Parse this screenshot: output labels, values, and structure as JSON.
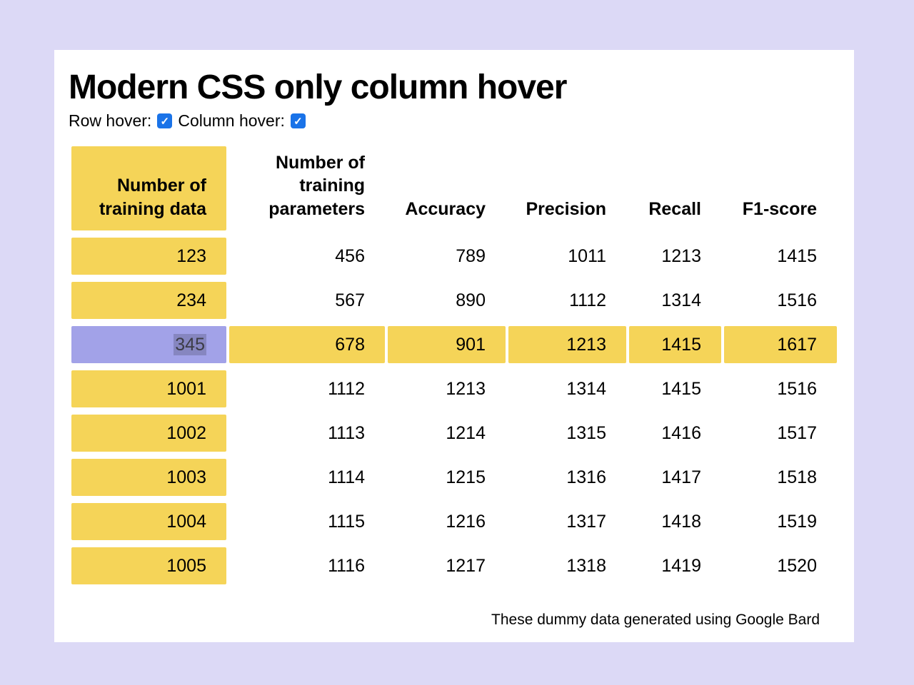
{
  "page": {
    "title": "Modern CSS only column hover",
    "footer": "These dummy data generated using Google Bard"
  },
  "controls": {
    "row_hover_label": "Row hover:",
    "column_hover_label": "Column hover:",
    "row_hover_checked": true,
    "column_hover_checked": true,
    "check_icon": "✓"
  },
  "table": {
    "headers": [
      "Number of training data",
      "Number of training parameters",
      "Accuracy",
      "Precision",
      "Recall",
      "F1-score"
    ],
    "rows": [
      [
        "123",
        "456",
        "789",
        "1011",
        "1213",
        "1415"
      ],
      [
        "234",
        "567",
        "890",
        "1112",
        "1314",
        "1516"
      ],
      [
        "345",
        "678",
        "901",
        "1213",
        "1415",
        "1617"
      ],
      [
        "1001",
        "1112",
        "1213",
        "1314",
        "1415",
        "1516"
      ],
      [
        "1002",
        "1113",
        "1214",
        "1315",
        "1416",
        "1517"
      ],
      [
        "1003",
        "1114",
        "1215",
        "1316",
        "1417",
        "1518"
      ],
      [
        "1004",
        "1115",
        "1216",
        "1317",
        "1418",
        "1519"
      ],
      [
        "1005",
        "1116",
        "1217",
        "1318",
        "1419",
        "1520"
      ]
    ],
    "highlighted_row_index": 2,
    "selected_cell_value": "345"
  },
  "colors": {
    "page_bg": "#dcd9f6",
    "card_bg": "#ffffff",
    "cell_yellow": "#f5d458",
    "intersect_purple": "#a2a2e8",
    "checkbox_blue": "#1a73e8"
  }
}
